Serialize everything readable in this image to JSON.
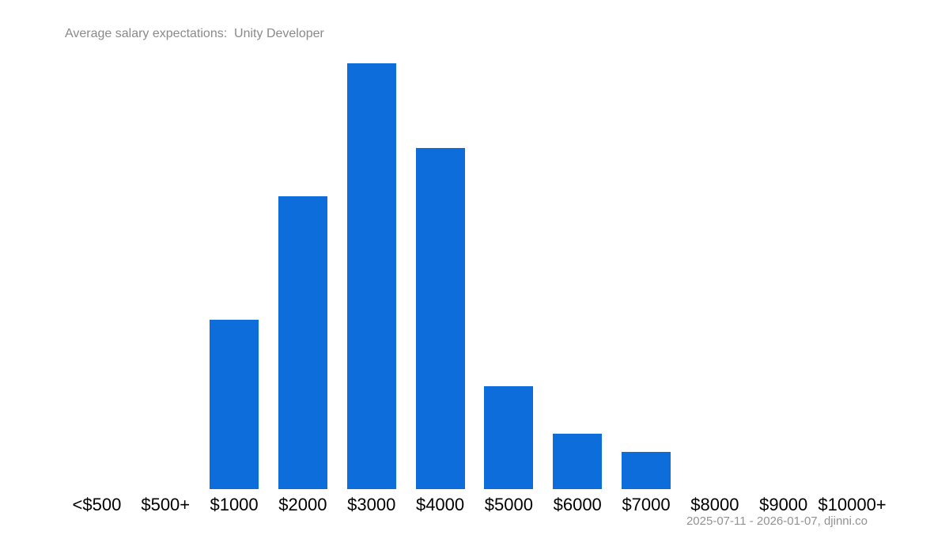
{
  "chart": {
    "title": "Average salary expectations:  Unity Developer",
    "caption": "2025-07-11 - 2026-01-07, djinni.co"
  },
  "colors": {
    "bar": "#0d6edb",
    "title_text": "#8a8a8a",
    "caption_text": "#929292",
    "axis_text": "#000000",
    "background": "#ffffff"
  },
  "chart_data": {
    "type": "bar",
    "title": "Average salary expectations:  Unity Developer",
    "categories": [
      "<$500",
      "$500+",
      "$1000",
      "$2000",
      "$3000",
      "$4000",
      "$5000",
      "$6000",
      "$7000",
      "$8000",
      "$9000",
      "$10000+"
    ],
    "values": [
      0,
      0,
      39.8,
      68.8,
      100,
      80.1,
      24.2,
      13,
      8.7,
      0,
      0,
      0
    ],
    "value_scale": "percent_of_max",
    "xlabel": "",
    "ylabel": "",
    "ylim": [
      0,
      100
    ],
    "grid": false,
    "y_axis_shown": false,
    "legend": "none",
    "caption": "2025-07-11 - 2026-01-07, djinni.co"
  }
}
